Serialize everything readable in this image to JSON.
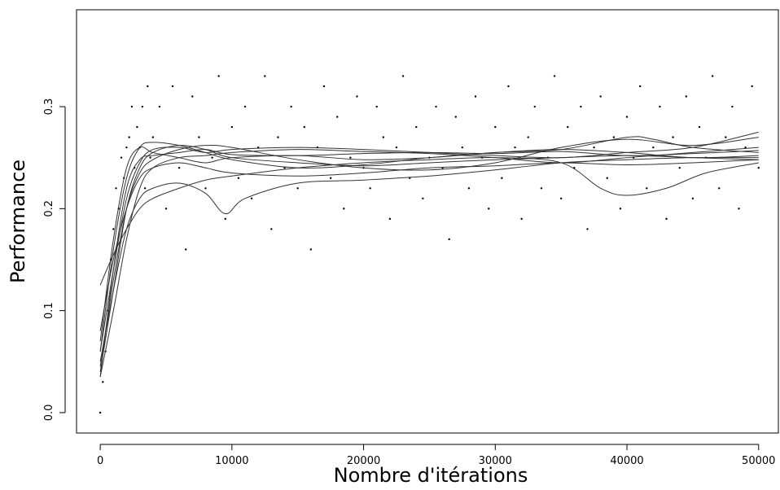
{
  "chart_data": {
    "type": "scatter",
    "title": "",
    "xlabel": "Nombre d'itérations",
    "ylabel": "Performance",
    "xlim": [
      -1800,
      51500
    ],
    "ylim": [
      -0.02,
      0.395
    ],
    "xticks": [
      0,
      10000,
      20000,
      30000,
      40000,
      50000
    ],
    "xtick_labels": [
      "0",
      "10000",
      "20000",
      "30000",
      "40000",
      "50000"
    ],
    "yticks": [
      0.0,
      0.1,
      0.2,
      0.3
    ],
    "ytick_labels": [
      "0.0",
      "0.1",
      "0.2",
      "0.3"
    ],
    "grid": false,
    "legend": "none",
    "point_color": "#000000",
    "line_color": "#333333",
    "scatter_points": {
      "description_note": "",
      "x": [
        0,
        200,
        400,
        600,
        800,
        1000,
        1200,
        1400,
        1600,
        1800,
        2000,
        2200,
        2400,
        2600,
        2800,
        3000,
        3200,
        3400,
        3600,
        3800,
        4000,
        4500,
        5000,
        5500,
        6000,
        6500,
        7000,
        7500,
        8000,
        8500,
        9000,
        9500,
        10000,
        10500,
        11000,
        11500,
        12000,
        12500,
        13000,
        13500,
        14000,
        14500,
        15000,
        15500,
        16000,
        16500,
        17000,
        17500,
        18000,
        18500,
        19000,
        19500,
        20000,
        20500,
        21000,
        21500,
        22000,
        22500,
        23000,
        23500,
        24000,
        24500,
        25000,
        25500,
        26000,
        26500,
        27000,
        27500,
        28000,
        28500,
        29000,
        29500,
        30000,
        30500,
        31000,
        31500,
        32000,
        32500,
        33000,
        33500,
        34000,
        34500,
        35000,
        35500,
        36000,
        36500,
        37000,
        37500,
        38000,
        38500,
        39000,
        39500,
        40000,
        40500,
        41000,
        41500,
        42000,
        42500,
        43000,
        43500,
        44000,
        44500,
        45000,
        45500,
        46000,
        46500,
        47000,
        47500,
        48000,
        48500,
        49000,
        49500,
        50000
      ],
      "y": [
        0.0,
        0.03,
        0.06,
        0.1,
        0.15,
        0.18,
        0.22,
        0.2,
        0.25,
        0.23,
        0.26,
        0.27,
        0.3,
        0.24,
        0.28,
        0.26,
        0.3,
        0.22,
        0.32,
        0.25,
        0.27,
        0.3,
        0.2,
        0.32,
        0.24,
        0.16,
        0.31,
        0.27,
        0.22,
        0.25,
        0.33,
        0.19,
        0.28,
        0.23,
        0.3,
        0.21,
        0.26,
        0.33,
        0.18,
        0.27,
        0.24,
        0.3,
        0.22,
        0.28,
        0.16,
        0.26,
        0.32,
        0.23,
        0.29,
        0.2,
        0.25,
        0.31,
        0.24,
        0.22,
        0.3,
        0.27,
        0.19,
        0.26,
        0.33,
        0.23,
        0.28,
        0.21,
        0.25,
        0.3,
        0.24,
        0.17,
        0.29,
        0.26,
        0.22,
        0.31,
        0.25,
        0.2,
        0.28,
        0.23,
        0.32,
        0.26,
        0.19,
        0.27,
        0.3,
        0.22,
        0.25,
        0.33,
        0.21,
        0.28,
        0.24,
        0.3,
        0.18,
        0.26,
        0.31,
        0.23,
        0.27,
        0.2,
        0.29,
        0.25,
        0.32,
        0.22,
        0.26,
        0.3,
        0.19,
        0.27,
        0.24,
        0.31,
        0.21,
        0.28,
        0.25,
        0.33,
        0.22,
        0.27,
        0.3,
        0.2,
        0.26,
        0.32,
        0.24
      ]
    },
    "series": [
      {
        "x": [
          0,
          1000,
          2000,
          3000,
          4000,
          6000,
          8000,
          10000,
          15000,
          20000,
          25000,
          30000,
          35000,
          40000,
          45000,
          50000
        ],
        "y": [
          0.035,
          0.14,
          0.22,
          0.248,
          0.252,
          0.255,
          0.258,
          0.253,
          0.252,
          0.254,
          0.255,
          0.254,
          0.256,
          0.252,
          0.254,
          0.257
        ]
      },
      {
        "x": [
          0,
          1000,
          2000,
          3000,
          4000,
          6000,
          8000,
          10000,
          15000,
          20000,
          25000,
          30000,
          35000,
          40000,
          45000,
          50000
        ],
        "y": [
          0.04,
          0.12,
          0.2,
          0.24,
          0.255,
          0.262,
          0.258,
          0.25,
          0.245,
          0.242,
          0.245,
          0.248,
          0.25,
          0.252,
          0.25,
          0.248
        ]
      },
      {
        "x": [
          0,
          1000,
          2000,
          3000,
          4000,
          6000,
          8000,
          10000,
          15000,
          20000,
          25000,
          30000,
          35000,
          40000,
          45000,
          50000
        ],
        "y": [
          0.06,
          0.16,
          0.23,
          0.26,
          0.265,
          0.262,
          0.255,
          0.248,
          0.24,
          0.243,
          0.25,
          0.255,
          0.258,
          0.255,
          0.25,
          0.252
        ]
      },
      {
        "x": [
          0,
          1000,
          2000,
          3000,
          4000,
          6000,
          8000,
          10000,
          15000,
          20000,
          25000,
          30000,
          35000,
          40000,
          45000,
          50000
        ],
        "y": [
          0.035,
          0.1,
          0.17,
          0.22,
          0.24,
          0.25,
          0.252,
          0.255,
          0.258,
          0.256,
          0.254,
          0.25,
          0.245,
          0.25,
          0.255,
          0.26
        ]
      },
      {
        "x": [
          0,
          1000,
          2000,
          3000,
          4000,
          6000,
          8000,
          10000,
          15000,
          20000,
          25000,
          30000,
          35000,
          40000,
          45000,
          50000
        ],
        "y": [
          0.08,
          0.15,
          0.2,
          0.23,
          0.24,
          0.245,
          0.24,
          0.235,
          0.232,
          0.235,
          0.24,
          0.242,
          0.245,
          0.243,
          0.245,
          0.248
        ]
      },
      {
        "x": [
          0,
          1000,
          2000,
          3000,
          4000,
          6000,
          8000,
          9500,
          11000,
          15000,
          20000,
          25000,
          30000,
          35000,
          40000,
          45000,
          50000
        ],
        "y": [
          0.05,
          0.12,
          0.18,
          0.21,
          0.22,
          0.225,
          0.215,
          0.195,
          0.21,
          0.225,
          0.228,
          0.232,
          0.238,
          0.245,
          0.248,
          0.25,
          0.25
        ]
      },
      {
        "x": [
          0,
          1000,
          2000,
          3000,
          4000,
          6000,
          8000,
          10000,
          15000,
          20000,
          25000,
          30000,
          35000,
          38000,
          40000,
          43000,
          46000,
          50000
        ],
        "y": [
          0.125,
          0.155,
          0.18,
          0.2,
          0.21,
          0.22,
          0.228,
          0.232,
          0.24,
          0.245,
          0.248,
          0.25,
          0.245,
          0.22,
          0.213,
          0.22,
          0.235,
          0.245
        ]
      },
      {
        "x": [
          0,
          1000,
          2000,
          3000,
          4000,
          6000,
          8000,
          10000,
          15000,
          20000,
          25000,
          30000,
          35000,
          40000,
          42000,
          45000,
          50000
        ],
        "y": [
          0.07,
          0.17,
          0.24,
          0.26,
          0.255,
          0.25,
          0.245,
          0.25,
          0.252,
          0.248,
          0.25,
          0.255,
          0.258,
          0.27,
          0.268,
          0.26,
          0.255
        ]
      },
      {
        "x": [
          0,
          1000,
          2000,
          3000,
          4000,
          6000,
          8000,
          10000,
          15000,
          20000,
          25000,
          30000,
          35000,
          40000,
          45000,
          50000
        ],
        "y": [
          0.045,
          0.13,
          0.2,
          0.235,
          0.248,
          0.258,
          0.262,
          0.26,
          0.248,
          0.24,
          0.238,
          0.245,
          0.26,
          0.268,
          0.262,
          0.27
        ]
      },
      {
        "x": [
          0,
          1000,
          2000,
          3000,
          4000,
          6000,
          8000,
          10000,
          15000,
          20000,
          25000,
          30000,
          35000,
          40000,
          45000,
          50000
        ],
        "y": [
          0.06,
          0.14,
          0.21,
          0.245,
          0.258,
          0.26,
          0.255,
          0.258,
          0.26,
          0.258,
          0.255,
          0.252,
          0.25,
          0.255,
          0.26,
          0.275
        ]
      }
    ]
  }
}
